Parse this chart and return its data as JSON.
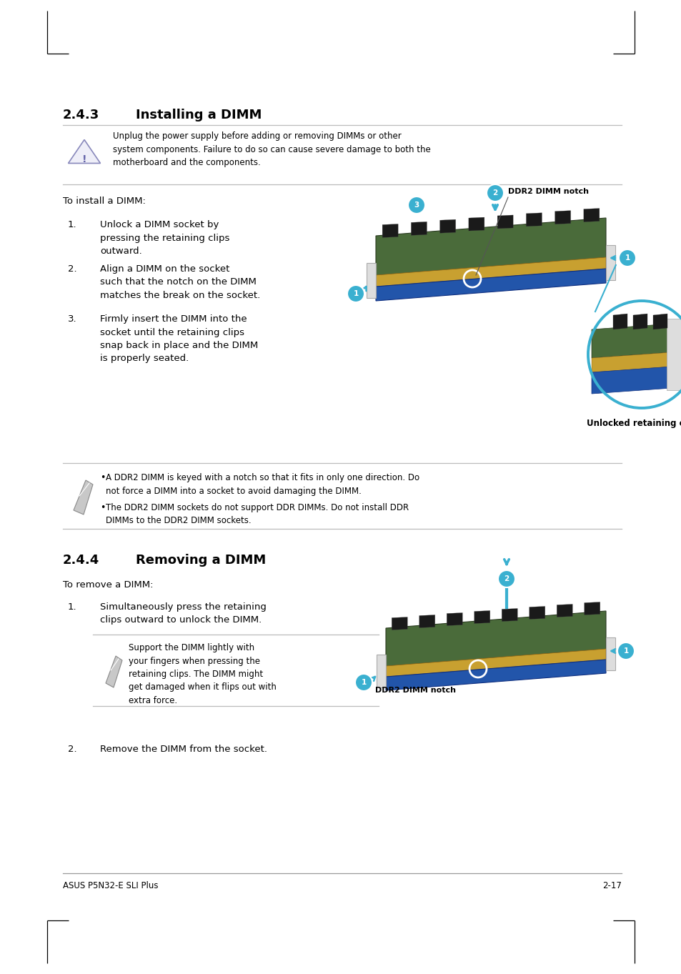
{
  "page_title_1": "2.4.3",
  "page_title_1_label": "Installing a DIMM",
  "page_title_2": "2.4.4",
  "page_title_2_label": "Removing a DIMM",
  "warning_text": "Unplug the power supply before adding or removing DIMMs or other\nsystem components. Failure to do so can cause severe damage to both the\nmotherboard and the components.",
  "install_intro": "To install a DIMM:",
  "install_steps": [
    "Unlock a DIMM socket by\npressing the retaining clips\noutward.",
    "Align a DIMM on the socket\nsuch that the notch on the DIMM\nmatches the break on the socket.",
    "Firmly insert the DIMM into the\nsocket until the retaining clips\nsnap back in place and the DIMM\nis properly seated."
  ],
  "install_caption": "Unlocked retaining clip",
  "install_ddr2_label": "DDR2 DIMM notch",
  "note_bullets": [
    "A DDR2 DIMM is keyed with a notch so that it fits in only one direction. Do\nnot force a DIMM into a socket to avoid damaging the DIMM.",
    "The DDR2 DIMM sockets do not support DDR DIMMs. Do not install DDR\nDIMMs to the DDR2 DIMM sockets."
  ],
  "remove_intro": "To remove a DIMM:",
  "remove_steps": [
    "Simultaneously press the retaining\nclips outward to unlock the DIMM."
  ],
  "remove_note": "Support the DIMM lightly with\nyour fingers when pressing the\nretaining clips. The DIMM might\nget damaged when it flips out with\nextra force.",
  "remove_ddr2_label": "DDR2 DIMM notch",
  "remove_step2": "Remove the DIMM from the socket.",
  "footer_left": "ASUS P5N32-E SLI Plus",
  "footer_right": "2-17",
  "bg_color": "#ffffff",
  "text_color": "#000000",
  "heading_color": "#000000",
  "accent_color": "#3ab0d0",
  "line_color": "#bbbbbb",
  "dimm_green": "#4a6b3a",
  "dimm_gold": "#c8a030",
  "dimm_blue": "#2255aa",
  "dimm_chip": "#1a1a1a",
  "clip_color": "#dddddd"
}
